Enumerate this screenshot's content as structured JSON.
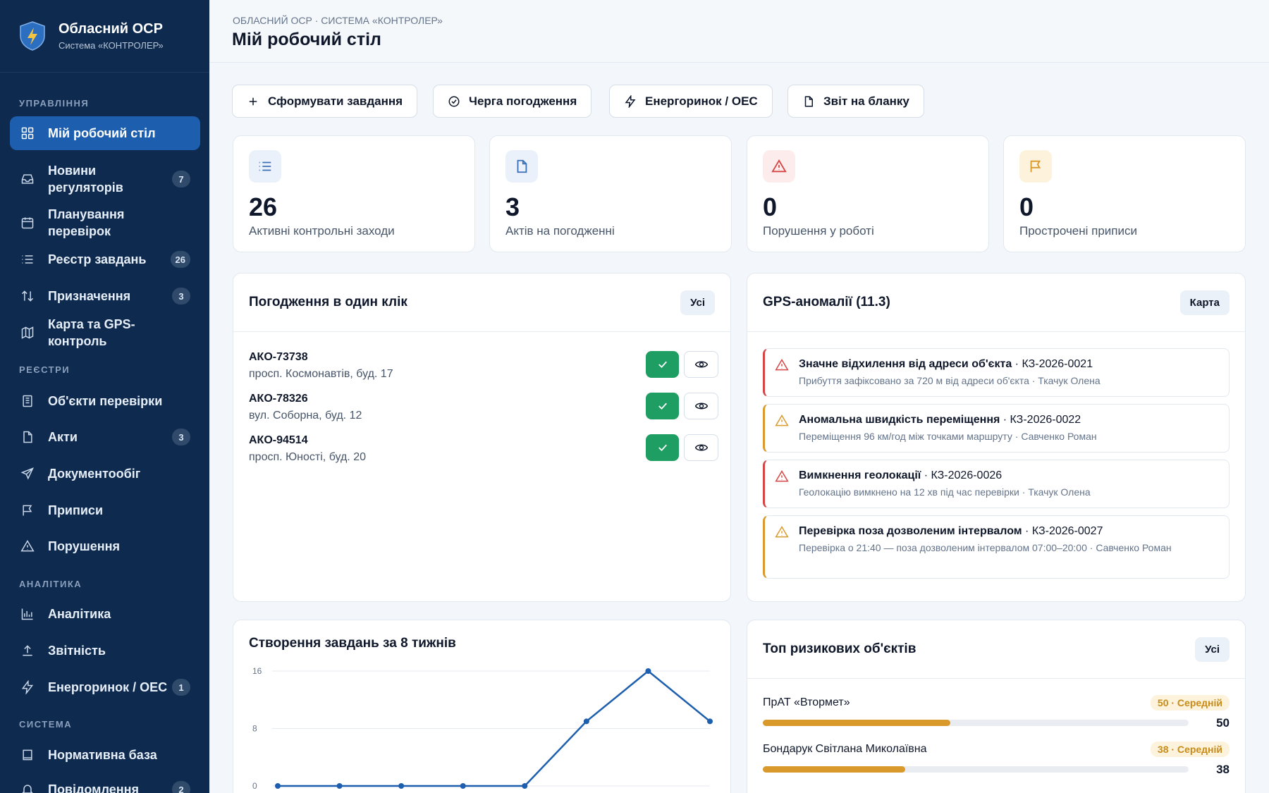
{
  "brand": {
    "title": "Обласний ОСР",
    "subtitle": "Система «КОНТРОЛЕР»"
  },
  "sidebar": {
    "sections": {
      "management": "УПРАВЛІННЯ",
      "registries": "РЕЄСТРИ",
      "analytics": "АНАЛІТИКА",
      "system": "СИСТЕМА"
    },
    "items": [
      {
        "label": "Мій робочий стіл",
        "icon": "dashboard-icon"
      },
      {
        "label": "Новини регуляторів",
        "badge": "7",
        "icon": "inbox-icon"
      },
      {
        "label": "Планування перевірок",
        "icon": "calendar-icon"
      },
      {
        "label": "Реєстр завдань",
        "badge": "26",
        "icon": "list-icon"
      },
      {
        "label": "Призначення",
        "badge": "3",
        "icon": "arrows-icon"
      },
      {
        "label": "Карта та GPS-контроль",
        "icon": "map-icon"
      },
      {
        "label": "Об'єкти перевірки",
        "icon": "building-icon"
      },
      {
        "label": "Акти",
        "badge": "3",
        "icon": "file-icon"
      },
      {
        "label": "Документообіг",
        "icon": "send-icon"
      },
      {
        "label": "Приписи",
        "icon": "flag-icon"
      },
      {
        "label": "Порушення",
        "icon": "warning-icon"
      },
      {
        "label": "Аналітика",
        "icon": "chart-icon"
      },
      {
        "label": "Звітність",
        "icon": "upload-icon"
      },
      {
        "label": "Енергоринок / ОЕС",
        "badge": "1",
        "icon": "bolt-icon"
      },
      {
        "label": "Нормативна база",
        "icon": "book-icon"
      },
      {
        "label": "Повідомлення",
        "badge": "2",
        "icon": "bell-icon"
      }
    ]
  },
  "header": {
    "breadcrumb": "ОБЛАСНИЙ ОСР · СИСТЕМА «КОНТРОЛЕР»",
    "title": "Мій робочий стіл"
  },
  "toolbar": {
    "create": "Сформувати завдання",
    "queue": "Черга погодження",
    "energy": "Енергоринок / ОЕС",
    "report": "Звіт на бланку"
  },
  "stats": [
    {
      "value": "26",
      "label": "Активні контрольні заходи",
      "color": "#3b6fb6"
    },
    {
      "value": "3",
      "label": "Актів на погодженні",
      "color": "#3b6fb6"
    },
    {
      "value": "0",
      "label": "Порушення у роботі",
      "color": "#d64545"
    },
    {
      "value": "0",
      "label": "Прострочені приписи",
      "color": "#d99a2b"
    }
  ],
  "approvals": {
    "title": "Погодження в один клік",
    "all": "Усі",
    "items": [
      {
        "id": "АКО-73738",
        "address": "просп. Космонавтів, буд. 17"
      },
      {
        "id": "АКО-78326",
        "address": "вул. Соборна, буд. 12"
      },
      {
        "id": "АКО-94514",
        "address": "просп. Юності, буд. 20"
      }
    ]
  },
  "gps": {
    "title": "GPS-аномалії (11.3)",
    "map": "Карта",
    "items": [
      {
        "title": "Значне відхилення від адреси об'єкта",
        "code": "КЗ-2026-0021",
        "desc": "Прибуття зафіксовано за 720 м від адреси об'єкта · Ткачук Олена",
        "level": "high",
        "color": "#d64545"
      },
      {
        "title": "Аномальна швидкість переміщення",
        "code": "КЗ-2026-0022",
        "desc": "Переміщення 96 км/год між точками маршруту · Савченко Роман",
        "level": "medium",
        "color": "#d99a2b"
      },
      {
        "title": "Вимкнення геолокації",
        "code": "КЗ-2026-0026",
        "desc": "Геолокацію вимкнено на 12 хв під час перевірки · Ткачук Олена",
        "level": "high",
        "color": "#d64545"
      },
      {
        "title": "Перевірка поза дозволеним інтервалом",
        "code": "КЗ-2026-0027",
        "desc": "Перевірка о 21:40 — поза дозволеним інтервалом 07:00–20:00 · Савченко Роман",
        "level": "medium",
        "color": "#d99a2b"
      }
    ]
  },
  "tasks_chart": {
    "title": "Створення завдань за 8 тижнів"
  },
  "chart_data": {
    "type": "line",
    "title": "Створення завдань за 8 тижнів",
    "x": [
      1,
      2,
      3,
      4,
      5,
      6,
      7,
      8
    ],
    "values": [
      0,
      0,
      0,
      0,
      0,
      9,
      16,
      9
    ],
    "y_ticks": [
      "0",
      "8",
      "16"
    ],
    "ylim": [
      0,
      16
    ],
    "grid": true,
    "color": "#1d5fae"
  },
  "risk": {
    "title": "Топ ризикових об'єктів",
    "all": "Усі",
    "items": [
      {
        "name": "ПрАТ «Втормет»",
        "tag": "50 · Середній",
        "score": "50",
        "fraction": 0.44
      },
      {
        "name": "Бондарук Світлана Миколаївна",
        "tag": "38 · Середній",
        "score": "38",
        "fraction": 0.335
      }
    ]
  }
}
